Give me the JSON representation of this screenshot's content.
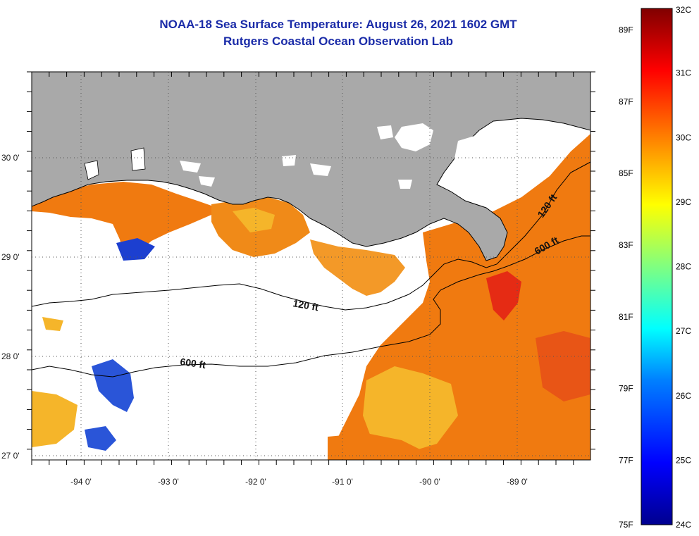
{
  "title": {
    "line1": "NOAA-18 Sea Surface Temperature:  August 26, 2021 1602 GMT",
    "line2": "Rutgers Coastal Ocean Observation Lab"
  },
  "map": {
    "lat_ticks": [
      {
        "value": 30,
        "label": "30 0'"
      },
      {
        "value": 29,
        "label": "29 0'"
      },
      {
        "value": 28,
        "label": "28 0'"
      },
      {
        "value": 27,
        "label": "27 0'"
      }
    ],
    "lon_ticks": [
      {
        "value": -94,
        "label": "-94 0'"
      },
      {
        "value": -93,
        "label": "-93 0'"
      },
      {
        "value": -92,
        "label": "-92 0'"
      },
      {
        "value": -91,
        "label": "-91 0'"
      },
      {
        "value": -90,
        "label": "-90 0'"
      },
      {
        "value": -89,
        "label": "-89 0'"
      }
    ],
    "lon_range": [
      -94.55,
      -88.25
    ],
    "lat_range": [
      26.95,
      30.85
    ],
    "contour_labels": [
      {
        "text": "120 ft"
      },
      {
        "text": "600 ft"
      },
      {
        "text": "120 ft"
      },
      {
        "text": "600 ft"
      }
    ],
    "colors": {
      "land": "#a9a9a9",
      "warm": "#f07a10",
      "hot": "#e52b14",
      "mild": "#f5b52a",
      "cool": "#2a55d8",
      "frame": "#000000"
    }
  },
  "colorbar": {
    "range_c": [
      24,
      32
    ],
    "celsius_labels": [
      "32C",
      "31C",
      "30C",
      "29C",
      "28C",
      "27C",
      "26C",
      "25C",
      "24C"
    ],
    "fahrenheit_labels": [
      "89F",
      "87F",
      "85F",
      "83F",
      "81F",
      "79F",
      "77F",
      "75F"
    ],
    "fahrenheit_values": [
      89,
      87,
      85,
      83,
      81,
      79,
      77,
      75
    ]
  }
}
